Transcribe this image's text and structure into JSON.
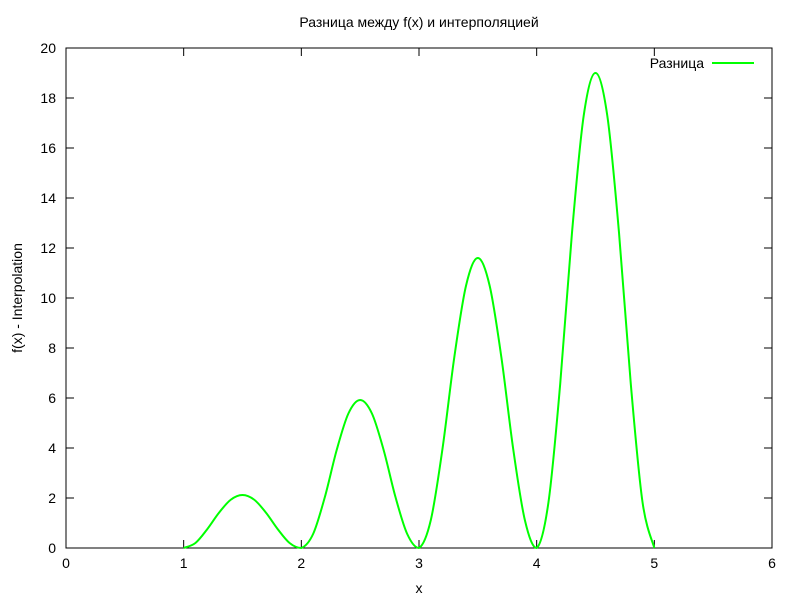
{
  "chart_data": {
    "type": "line",
    "title": "Разница между f(x) и интерполяцией",
    "xlabel": "x",
    "ylabel": "f(x) - Interpolation",
    "xlim": [
      0,
      6
    ],
    "ylim": [
      0,
      20
    ],
    "x_ticks": [
      "0",
      "1",
      "2",
      "3",
      "4",
      "5",
      "6"
    ],
    "y_ticks": [
      "0",
      "2",
      "4",
      "6",
      "8",
      "10",
      "12",
      "14",
      "16",
      "18",
      "20"
    ],
    "grid": false,
    "legend_position": "top-right",
    "series": [
      {
        "name": "Разница",
        "color": "#00ff00",
        "x": [
          1.0,
          1.1,
          1.2,
          1.3,
          1.4,
          1.5,
          1.6,
          1.7,
          1.8,
          1.9,
          2.0,
          2.1,
          2.2,
          2.3,
          2.4,
          2.5,
          2.6,
          2.7,
          2.8,
          2.9,
          3.0,
          3.1,
          3.2,
          3.3,
          3.4,
          3.5,
          3.6,
          3.7,
          3.8,
          3.9,
          4.0,
          4.1,
          4.2,
          4.3,
          4.4,
          4.5,
          4.6,
          4.7,
          4.8,
          4.9,
          5.0
        ],
        "y": [
          0.0,
          0.2,
          0.75,
          1.41,
          1.93,
          2.12,
          1.93,
          1.41,
          0.75,
          0.2,
          0.0,
          0.56,
          2.04,
          3.91,
          5.38,
          5.92,
          5.38,
          3.91,
          2.04,
          0.56,
          0.0,
          1.11,
          3.98,
          7.63,
          10.5,
          11.6,
          10.5,
          7.63,
          3.98,
          1.11,
          0.0,
          1.82,
          6.56,
          12.6,
          17.3,
          19.0,
          17.3,
          12.6,
          6.56,
          1.82,
          0.0
        ]
      }
    ]
  }
}
